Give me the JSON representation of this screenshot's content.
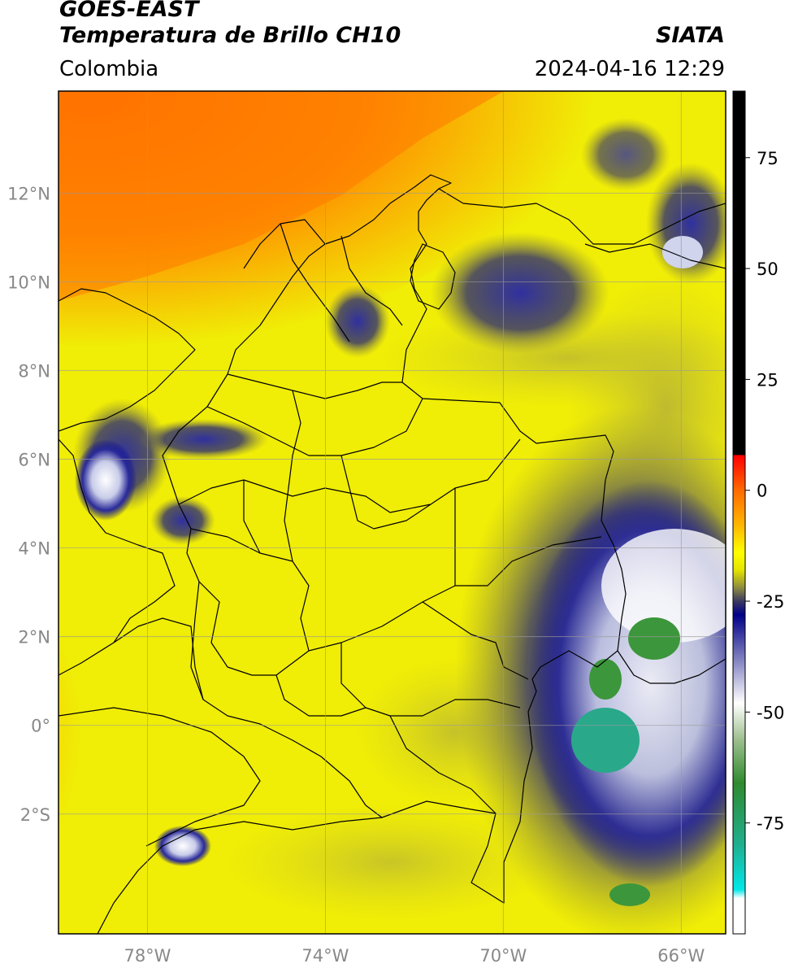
{
  "header": {
    "satellite": "GOES-EAST",
    "product": "Temperatura de Brillo CH10",
    "organization": "SIATA",
    "region": "Colombia",
    "timestamp": "2024-04-16 12:29"
  },
  "map": {
    "lon_range": [
      -80,
      -65
    ],
    "lat_range": [
      -4.7,
      14.3
    ],
    "lat_ticks": [
      {
        "value": 12,
        "label": "12°N"
      },
      {
        "value": 10,
        "label": "10°N"
      },
      {
        "value": 8,
        "label": "8°N"
      },
      {
        "value": 6,
        "label": "6°N"
      },
      {
        "value": 4,
        "label": "4°N"
      },
      {
        "value": 2,
        "label": "2°N"
      },
      {
        "value": 0,
        "label": "0°"
      },
      {
        "value": -2,
        "label": "2°S"
      }
    ],
    "lon_ticks": [
      {
        "value": -78,
        "label": "78°W"
      },
      {
        "value": -74,
        "label": "74°W"
      },
      {
        "value": -70,
        "label": "70°W"
      },
      {
        "value": -66,
        "label": "66°W"
      }
    ],
    "grid": true
  },
  "colorbar": {
    "range": [
      -100,
      90
    ],
    "ticks": [
      {
        "value": 75,
        "label": "75"
      },
      {
        "value": 50,
        "label": "50"
      },
      {
        "value": 25,
        "label": "25"
      },
      {
        "value": 0,
        "label": "0"
      },
      {
        "value": -25,
        "label": "-25"
      },
      {
        "value": -50,
        "label": "-50"
      },
      {
        "value": -75,
        "label": "-75"
      }
    ],
    "stops": [
      {
        "value": 90,
        "color": "#000000"
      },
      {
        "value": 8,
        "color": "#000000"
      },
      {
        "value": 7.9,
        "color": "#ff0000"
      },
      {
        "value": 0,
        "color": "#ff6a00"
      },
      {
        "value": -8,
        "color": "#ffb800"
      },
      {
        "value": -14,
        "color": "#ffff00"
      },
      {
        "value": -18,
        "color": "#e4e400"
      },
      {
        "value": -22,
        "color": "#8c8a40"
      },
      {
        "value": -25,
        "color": "#3a3a60"
      },
      {
        "value": -28,
        "color": "#000088"
      },
      {
        "value": -38,
        "color": "#8080c0"
      },
      {
        "value": -48,
        "color": "#ffffff"
      },
      {
        "value": -56,
        "color": "#a0c090"
      },
      {
        "value": -66,
        "color": "#2f8a2f"
      },
      {
        "value": -80,
        "color": "#20b090"
      },
      {
        "value": -90,
        "color": "#00e8e8"
      },
      {
        "value": -92,
        "color": "#ffffff"
      },
      {
        "value": -100,
        "color": "#ffffff"
      }
    ]
  }
}
